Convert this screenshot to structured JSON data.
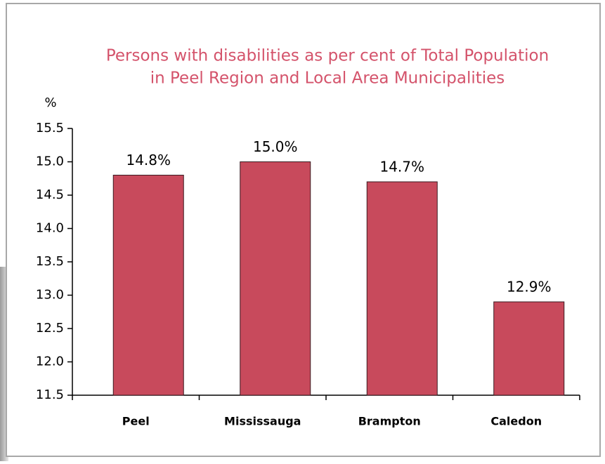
{
  "chart_data": {
    "type": "bar",
    "title": [
      "Persons with disabilities as per cent of Total Population",
      "in Peel Region and Local Area Municipalities"
    ],
    "y_label": "%",
    "categories": [
      "Peel",
      "Mississauga",
      "Brampton",
      "Caledon"
    ],
    "values": [
      14.8,
      15.0,
      14.7,
      12.9
    ],
    "value_labels": [
      "14.8%",
      "15.0%",
      "14.7%",
      "12.9%"
    ],
    "color": "#c84a5c",
    "ylim": [
      11.5,
      15.5
    ],
    "yticks": [
      11.5,
      {
        "value": 12,
        "label": "12.0"
      },
      12.5,
      {
        "value": 13,
        "label": "13.0"
      },
      13.5,
      {
        "value": 14,
        "label": "14.0"
      },
      14.5,
      {
        "value": 15,
        "label": "15.0"
      },
      15.5
    ]
  }
}
